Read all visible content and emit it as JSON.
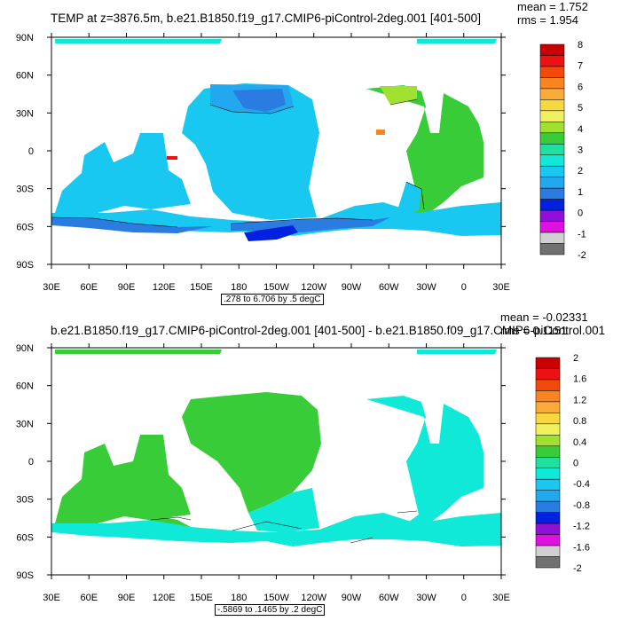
{
  "chart_data": [
    {
      "type": "heatmap",
      "title": "TEMP at z=3876.5m, b.e21.B1850.f19_g17.CMIP6-piControl-2deg.001 [401-500]",
      "stats": {
        "mean": "mean = 1.752",
        "rms": "rms = 1.954"
      },
      "range_note": ".278 to 6.706 by .5 degC",
      "x_ticks": [
        "30E",
        "60E",
        "90E",
        "120E",
        "150E",
        "180",
        "150W",
        "120W",
        "90W",
        "60W",
        "30W",
        "0",
        "30E"
      ],
      "y_ticks": [
        "90N",
        "60N",
        "30N",
        "0",
        "30S",
        "60S",
        "90S"
      ],
      "colorbar": {
        "labels": [
          "8",
          "7",
          "6",
          "5",
          "4",
          "3",
          "2",
          "1",
          "0",
          "-1",
          "-2"
        ],
        "colors": [
          "#c80000",
          "#ee1111",
          "#f34a0a",
          "#f88520",
          "#fbab3c",
          "#f7d840",
          "#f0f060",
          "#a0e030",
          "#38cc38",
          "#20e0a0",
          "#10e8d8",
          "#18c8f0",
          "#22a8ee",
          "#2a7ce0",
          "#0022e0",
          "#9010d8",
          "#e010e0",
          "#d0d0d0",
          "#707070"
        ]
      }
    },
    {
      "type": "heatmap",
      "title": "b.e21.B1850.f19_g17.CMIP6-piControl-2deg.001 [401-500] - b.e21.B1850.f09_g17.CMIP6-piControl.001",
      "stats": {
        "mean": "mean = -0.02331",
        "rms": "rms = 0.1151"
      },
      "range_note": "-.5869 to .1465 by .2 degC",
      "x_ticks": [
        "30E",
        "60E",
        "90E",
        "120E",
        "150E",
        "180",
        "150W",
        "120W",
        "90W",
        "60W",
        "30W",
        "0",
        "30E"
      ],
      "y_ticks": [
        "90N",
        "60N",
        "30N",
        "0",
        "30S",
        "60S",
        "90S"
      ],
      "colorbar": {
        "labels": [
          "2",
          "1.6",
          "1.2",
          "0.8",
          "0.4",
          "0",
          "-0.4",
          "-0.8",
          "-1.2",
          "-1.6",
          "-2"
        ],
        "colors": [
          "#c80000",
          "#ee1111",
          "#f34a0a",
          "#f88520",
          "#fbab3c",
          "#f7d840",
          "#f0f060",
          "#a0e030",
          "#38cc38",
          "#20e0a0",
          "#10e8d8",
          "#18c8f0",
          "#22a8ee",
          "#2a7ce0",
          "#0022e0",
          "#9010d8",
          "#e010e0",
          "#d0d0d0",
          "#707070"
        ]
      }
    }
  ]
}
